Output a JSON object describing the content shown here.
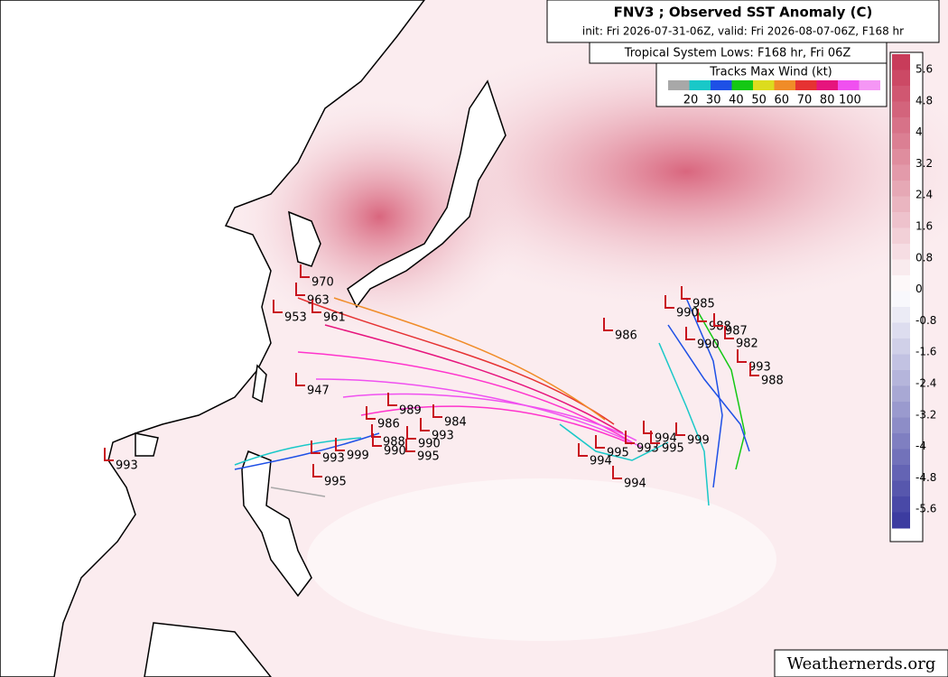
{
  "header": {
    "title": "FNV3 ; Observed SST Anomaly (C)",
    "subtitle": "init: Fri 2026-07-31-06Z, valid: Fri 2026-08-07-06Z, F168 hr"
  },
  "legend": {
    "title": "Tropical System Lows: F168 hr, Fri 06Z",
    "subtitle": "Tracks Max Wind (kt)",
    "colors": [
      "#a8a8a8",
      "#19c8c8",
      "#1e50e6",
      "#14c814",
      "#dcdc1e",
      "#f08c28",
      "#e63232",
      "#e6147d",
      "#f050f0",
      "#f596f5"
    ],
    "labels": [
      "20",
      "30",
      "40",
      "50",
      "60",
      "70",
      "80",
      "100"
    ]
  },
  "colorbar": {
    "labels": [
      "5.6",
      "4.8",
      "4",
      "3.2",
      "2.4",
      "1.6",
      "0.8",
      "0",
      "-0.8",
      "-1.6",
      "-2.4",
      "-3.2",
      "-4",
      "-4.8",
      "-5.6"
    ]
  },
  "pressure_labels": [
    "970",
    "963",
    "953",
    "961",
    "993",
    "993",
    "999",
    "995",
    "988",
    "990",
    "995",
    "990",
    "993",
    "984",
    "989",
    "986",
    "986",
    "988",
    "990",
    "982",
    "993",
    "988",
    "995",
    "993",
    "994",
    "995",
    "999",
    "994",
    "994",
    "990",
    "985",
    "987",
    "947"
  ],
  "watermark": "Weathernerds.org"
}
